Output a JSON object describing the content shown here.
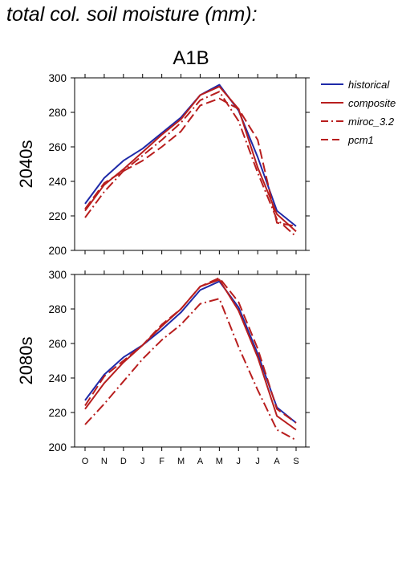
{
  "page_title": "total col. soil moisture (mm):",
  "chart_data": {
    "type": "line",
    "scenario_title": "A1B",
    "categories": [
      "O",
      "N",
      "D",
      "J",
      "F",
      "M",
      "A",
      "M",
      "J",
      "J",
      "A",
      "S"
    ],
    "ylim": [
      200,
      300
    ],
    "yticks": [
      200,
      220,
      240,
      260,
      280,
      300
    ],
    "legend": {
      "placement": "right",
      "entries": [
        {
          "name": "historical",
          "color": "#1f2aa8",
          "dash": "solid"
        },
        {
          "name": "composite",
          "color": "#b81e1e",
          "dash": "solid"
        },
        {
          "name": "miroc_3.2",
          "color": "#b81e1e",
          "dash": "dashdot"
        },
        {
          "name": "pcm1",
          "color": "#b81e1e",
          "dash": "dashed"
        }
      ]
    },
    "panels": [
      {
        "label": "2040s",
        "series": [
          {
            "name": "historical",
            "values": [
              227,
              242,
              252,
              259,
              268,
              277,
              290,
              296,
              281,
              254,
              223,
              214
            ]
          },
          {
            "name": "composite",
            "values": [
              223,
              238,
              247,
              257,
              267,
              276,
              290,
              295,
              282,
              248,
              221,
              211
            ]
          },
          {
            "name": "miroc_3.2",
            "values": [
              219,
              234,
              246,
              255,
              264,
              274,
              287,
              292,
              275,
              245,
              218,
              208
            ]
          },
          {
            "name": "pcm1",
            "values": [
              224,
              239,
              246,
              252,
              260,
              269,
              284,
              288,
              282,
              264,
              216,
              214
            ]
          }
        ]
      },
      {
        "label": "2080s",
        "series": [
          {
            "name": "historical",
            "values": [
              227,
              242,
              252,
              259,
              268,
              278,
              291,
              296,
              281,
              254,
              223,
              214
            ]
          },
          {
            "name": "composite",
            "values": [
              222,
              237,
              249,
              259,
              270,
              280,
              293,
              297,
              279,
              252,
              218,
              210
            ]
          },
          {
            "name": "miroc_3.2",
            "values": [
              213,
              225,
              238,
              251,
              262,
              271,
              283,
              286,
              258,
              233,
              210,
              204
            ]
          },
          {
            "name": "pcm1",
            "values": [
              224,
              241,
              250,
              259,
              271,
              280,
              293,
              298,
              284,
              257,
              222,
              214
            ]
          }
        ]
      }
    ]
  }
}
